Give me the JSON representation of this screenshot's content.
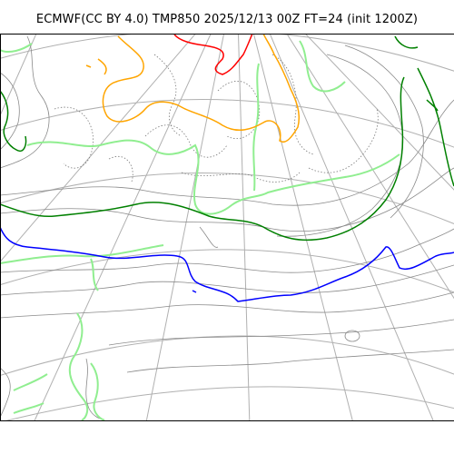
{
  "title": "ECMWF(CC BY 4.0) TMP850 2025/12/13 00Z FT=24 (init 1200Z)",
  "colors": {
    "background": "#ffffff",
    "graticule": "#b0b0b0",
    "contour_thin": "#8a8a8a",
    "contour_dotted": "#7a7a7a",
    "isotherm_light_green": "#90ee90",
    "isotherm_green": "#008000",
    "isotherm_blue": "#0000ff",
    "isotherm_orange": "#ffa500",
    "isotherm_red": "#ff0000"
  }
}
